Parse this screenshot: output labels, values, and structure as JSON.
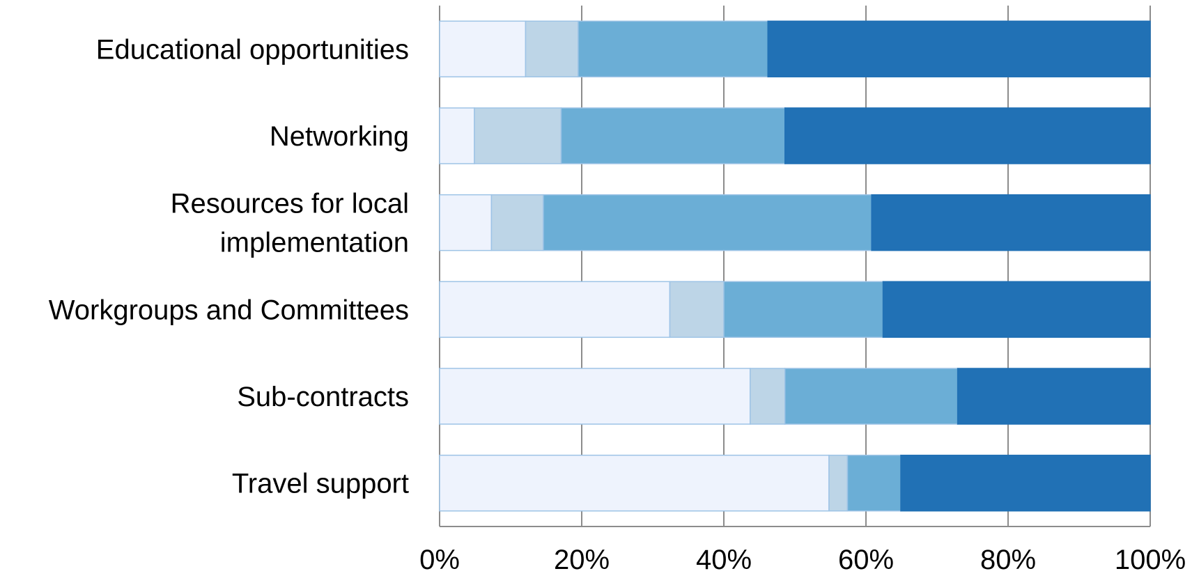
{
  "chart_data": {
    "type": "bar",
    "orientation": "horizontal",
    "stacked": "percent",
    "categories": [
      "Educational opportunities",
      "Networking",
      [
        "Resources for local",
        "implementation"
      ],
      "Workgroups and Committees",
      "Sub-contracts",
      "Travel support"
    ],
    "series": [
      {
        "values": [
          12.1,
          4.9,
          7.3,
          32.4,
          43.7,
          54.8
        ],
        "color": "#eef3fd"
      },
      {
        "values": [
          7.4,
          12.2,
          7.3,
          7.6,
          4.9,
          2.6
        ],
        "color": "#bdd5e7"
      },
      {
        "values": [
          26.7,
          31.5,
          46.2,
          22.4,
          24.3,
          7.5
        ],
        "color": "#6baed6"
      },
      {
        "values": [
          53.8,
          51.4,
          39.2,
          37.6,
          27.1,
          35.1
        ],
        "color": "#2171b5"
      }
    ],
    "xlim": [
      0,
      100
    ],
    "xticks": [
      "0%",
      "20%",
      "40%",
      "60%",
      "80%",
      "100%"
    ],
    "grid": "vertical",
    "legend": "none",
    "title": "",
    "xlabel": "",
    "ylabel": ""
  }
}
